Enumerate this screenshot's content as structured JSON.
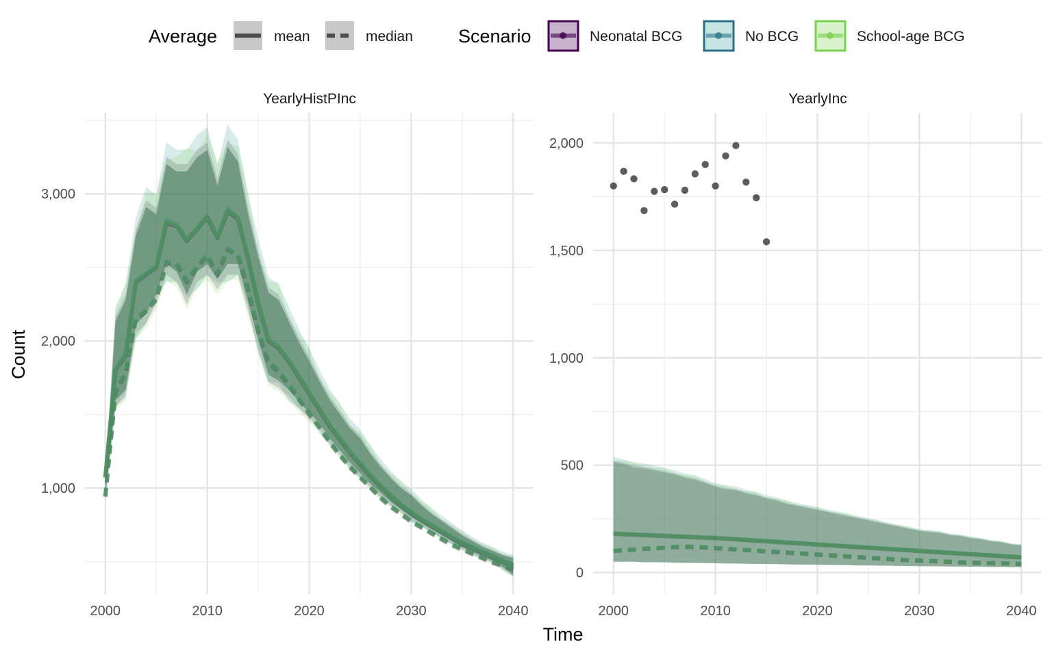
{
  "chart_data": {
    "type": "line",
    "xlabel": "Time",
    "ylabel": "Count",
    "legend": {
      "placement": "top",
      "groups": [
        {
          "title": "Average",
          "entries": [
            {
              "label": "mean",
              "linetype": "solid"
            },
            {
              "label": "median",
              "linetype": "dashed"
            }
          ]
        },
        {
          "title": "Scenario",
          "entries": [
            {
              "label": "Neonatal BCG",
              "color": "#440154"
            },
            {
              "label": "No BCG",
              "color": "#21908C"
            },
            {
              "label": "School-age BCG",
              "color": "#7AD151"
            }
          ]
        }
      ]
    },
    "colors": {
      "neonatal": "#440154",
      "nobcg": "#21908C",
      "schoolage": "#7AD151",
      "observed": "#333333"
    },
    "facets": [
      {
        "title": "YearlyHistPInc",
        "xlim": [
          1998,
          2042
        ],
        "ylim": [
          280,
          3550
        ],
        "x_ticks": [
          2000,
          2010,
          2020,
          2030,
          2040
        ],
        "x_tick_labels": [
          "2000",
          "2010",
          "2020",
          "2030",
          "2040"
        ],
        "y_ticks": [
          1000,
          2000,
          3000
        ],
        "y_tick_labels": [
          "1,000",
          "2,000",
          "3,000"
        ],
        "x": [
          2000,
          2001,
          2002,
          2003,
          2004,
          2005,
          2006,
          2007,
          2008,
          2009,
          2010,
          2011,
          2012,
          2013,
          2014,
          2015,
          2016,
          2017,
          2018,
          2019,
          2020,
          2021,
          2022,
          2023,
          2024,
          2025,
          2026,
          2027,
          2028,
          2029,
          2030,
          2031,
          2032,
          2033,
          2034,
          2035,
          2036,
          2037,
          2038,
          2039,
          2040
        ],
        "ribbon_lower": [
          920,
          1550,
          1620,
          2050,
          2120,
          2250,
          2450,
          2400,
          2250,
          2400,
          2450,
          2350,
          2450,
          2450,
          2200,
          1950,
          1720,
          1680,
          1620,
          1540,
          1470,
          1400,
          1300,
          1220,
          1140,
          1070,
          1000,
          940,
          880,
          830,
          780,
          740,
          700,
          660,
          620,
          580,
          550,
          520,
          490,
          450,
          400
        ],
        "ribbon_upper": [
          1100,
          2200,
          2350,
          2800,
          3000,
          2950,
          3300,
          3250,
          3250,
          3350,
          3400,
          3150,
          3420,
          3320,
          2950,
          2650,
          2400,
          2350,
          2200,
          2050,
          1920,
          1780,
          1650,
          1550,
          1450,
          1380,
          1270,
          1180,
          1100,
          1030,
          980,
          910,
          850,
          800,
          750,
          700,
          660,
          620,
          590,
          560,
          540
        ],
        "series": [
          {
            "name": "Neonatal BCG",
            "mean": [
              1070,
              1800,
              1900,
              2400,
              2450,
              2500,
              2800,
              2780,
              2680,
              2760,
              2840,
              2700,
              2880,
              2830,
              2560,
              2250,
              2000,
              1950,
              1860,
              1750,
              1640,
              1530,
              1420,
              1330,
              1240,
              1160,
              1080,
              1010,
              940,
              880,
              830,
              780,
              740,
              700,
              660,
              620,
              590,
              560,
              530,
              500,
              470
            ],
            "median": [
              940,
              1650,
              1780,
              2150,
              2200,
              2280,
              2530,
              2520,
              2400,
              2500,
              2580,
              2450,
              2620,
              2580,
              2350,
              2060,
              1850,
              1790,
              1700,
              1600,
              1500,
              1410,
              1310,
              1220,
              1140,
              1070,
              1000,
              930,
              870,
              820,
              770,
              730,
              690,
              650,
              610,
              580,
              550,
              520,
              490,
              470,
              445
            ]
          },
          {
            "name": "No BCG",
            "mean": [
              1080,
              1810,
              1910,
              2410,
              2460,
              2510,
              2820,
              2790,
              2690,
              2770,
              2850,
              2710,
              2900,
              2840,
              2570,
              2260,
              2010,
              1960,
              1870,
              1760,
              1650,
              1540,
              1430,
              1340,
              1250,
              1170,
              1090,
              1020,
              950,
              890,
              840,
              790,
              750,
              710,
              670,
              630,
              600,
              570,
              540,
              510,
              480
            ],
            "median": [
              950,
              1660,
              1790,
              2160,
              2210,
              2290,
              2540,
              2530,
              2410,
              2510,
              2590,
              2460,
              2630,
              2590,
              2360,
              2070,
              1860,
              1800,
              1710,
              1610,
              1510,
              1420,
              1320,
              1230,
              1150,
              1080,
              1010,
              940,
              880,
              830,
              780,
              740,
              700,
              660,
              620,
              590,
              560,
              530,
              500,
              480,
              455
            ]
          },
          {
            "name": "School-age BCG",
            "mean": [
              1075,
              1805,
              1905,
              2405,
              2455,
              2505,
              2810,
              2785,
              2685,
              2765,
              2845,
              2705,
              2890,
              2835,
              2565,
              2255,
              2005,
              1955,
              1865,
              1755,
              1645,
              1535,
              1425,
              1335,
              1245,
              1165,
              1085,
              1015,
              945,
              885,
              835,
              785,
              745,
              705,
              665,
              625,
              595,
              565,
              535,
              505,
              475
            ],
            "median": [
              945,
              1655,
              1785,
              2155,
              2205,
              2285,
              2535,
              2525,
              2405,
              2505,
              2585,
              2455,
              2625,
              2585,
              2355,
              2065,
              1855,
              1795,
              1705,
              1605,
              1505,
              1415,
              1315,
              1225,
              1145,
              1075,
              1005,
              935,
              875,
              825,
              775,
              735,
              695,
              655,
              615,
              585,
              555,
              525,
              495,
              475,
              450
            ]
          }
        ],
        "observed": []
      },
      {
        "title": "YearlyInc",
        "xlim": [
          1998,
          2042
        ],
        "ylim": [
          -100,
          2140
        ],
        "x_ticks": [
          2000,
          2010,
          2020,
          2030,
          2040
        ],
        "x_tick_labels": [
          "2000",
          "2010",
          "2020",
          "2030",
          "2040"
        ],
        "y_ticks": [
          0,
          500,
          1000,
          1500,
          2000
        ],
        "y_tick_labels": [
          "0",
          "500",
          "1,000",
          "1,500",
          "2,000"
        ],
        "x": [
          2000,
          2001,
          2002,
          2003,
          2004,
          2005,
          2006,
          2007,
          2008,
          2009,
          2010,
          2011,
          2012,
          2013,
          2014,
          2015,
          2016,
          2017,
          2018,
          2019,
          2020,
          2021,
          2022,
          2023,
          2024,
          2025,
          2026,
          2027,
          2028,
          2029,
          2030,
          2031,
          2032,
          2033,
          2034,
          2035,
          2036,
          2037,
          2038,
          2039,
          2040
        ],
        "ribbon_lower": [
          50,
          50,
          50,
          48,
          48,
          47,
          46,
          45,
          45,
          44,
          43,
          42,
          42,
          41,
          40,
          40,
          39,
          38,
          37,
          37,
          36,
          35,
          35,
          34,
          33,
          33,
          32,
          32,
          31,
          30,
          30,
          29,
          29,
          28,
          28,
          27,
          27,
          26,
          26,
          25,
          25
        ],
        "ribbon_upper": [
          530,
          520,
          505,
          500,
          490,
          480,
          470,
          455,
          445,
          430,
          410,
          400,
          395,
          380,
          370,
          355,
          345,
          330,
          320,
          310,
          300,
          290,
          280,
          270,
          260,
          250,
          240,
          230,
          220,
          210,
          200,
          195,
          190,
          180,
          175,
          165,
          160,
          150,
          145,
          135,
          130
        ],
        "series": [
          {
            "name": "Neonatal BCG",
            "mean": [
              180,
              178,
              176,
              174,
              172,
              170,
              168,
              166,
              164,
              162,
              160,
              157,
              154,
              151,
              148,
              145,
              142,
              139,
              136,
              133,
              130,
              127,
              124,
              121,
              118,
              115,
              112,
              109,
              106,
              103,
              100,
              97,
              94,
              91,
              88,
              85,
              82,
              79,
              76,
              73,
              70
            ],
            "median": [
              100,
              103,
              106,
              110,
              112,
              115,
              118,
              120,
              118,
              116,
              113,
              110,
              107,
              104,
              101,
              98,
              95,
              92,
              89,
              86,
              83,
              80,
              77,
              74,
              71,
              68,
              65,
              62,
              59,
              57,
              55,
              53,
              51,
              49,
              47,
              45,
              44,
              43,
              42,
              41,
              40
            ]
          },
          {
            "name": "No BCG",
            "mean": [
              182,
              180,
              178,
              176,
              174,
              172,
              170,
              168,
              166,
              164,
              162,
              159,
              156,
              153,
              150,
              147,
              144,
              141,
              138,
              135,
              132,
              129,
              126,
              123,
              120,
              117,
              114,
              111,
              108,
              105,
              102,
              99,
              96,
              93,
              90,
              87,
              84,
              81,
              78,
              75,
              72
            ],
            "median": [
              102,
              105,
              108,
              112,
              114,
              117,
              120,
              122,
              120,
              118,
              115,
              112,
              109,
              106,
              103,
              100,
              97,
              94,
              91,
              88,
              85,
              82,
              79,
              76,
              73,
              70,
              67,
              64,
              61,
              59,
              57,
              55,
              53,
              51,
              49,
              47,
              46,
              45,
              44,
              43,
              42
            ]
          },
          {
            "name": "School-age BCG",
            "mean": [
              181,
              179,
              177,
              175,
              173,
              171,
              169,
              167,
              165,
              163,
              161,
              158,
              155,
              152,
              149,
              146,
              143,
              140,
              137,
              134,
              131,
              128,
              125,
              122,
              119,
              116,
              113,
              110,
              107,
              104,
              101,
              98,
              95,
              92,
              89,
              86,
              83,
              80,
              77,
              74,
              71
            ],
            "median": [
              101,
              104,
              107,
              111,
              113,
              116,
              119,
              121,
              119,
              117,
              114,
              111,
              108,
              105,
              102,
              99,
              96,
              93,
              90,
              87,
              84,
              81,
              78,
              75,
              72,
              69,
              66,
              63,
              60,
              58,
              56,
              54,
              52,
              50,
              48,
              46,
              45,
              44,
              43,
              42,
              41
            ]
          }
        ],
        "observed": [
          {
            "x": 2000,
            "y": 1800
          },
          {
            "x": 2001,
            "y": 1868
          },
          {
            "x": 2002,
            "y": 1833
          },
          {
            "x": 2003,
            "y": 1685
          },
          {
            "x": 2004,
            "y": 1775
          },
          {
            "x": 2005,
            "y": 1783
          },
          {
            "x": 2006,
            "y": 1715
          },
          {
            "x": 2007,
            "y": 1780
          },
          {
            "x": 2008,
            "y": 1856
          },
          {
            "x": 2009,
            "y": 1900
          },
          {
            "x": 2010,
            "y": 1800
          },
          {
            "x": 2011,
            "y": 1940
          },
          {
            "x": 2012,
            "y": 1988
          },
          {
            "x": 2013,
            "y": 1818
          },
          {
            "x": 2014,
            "y": 1745
          },
          {
            "x": 2015,
            "y": 1540
          }
        ]
      }
    ]
  }
}
